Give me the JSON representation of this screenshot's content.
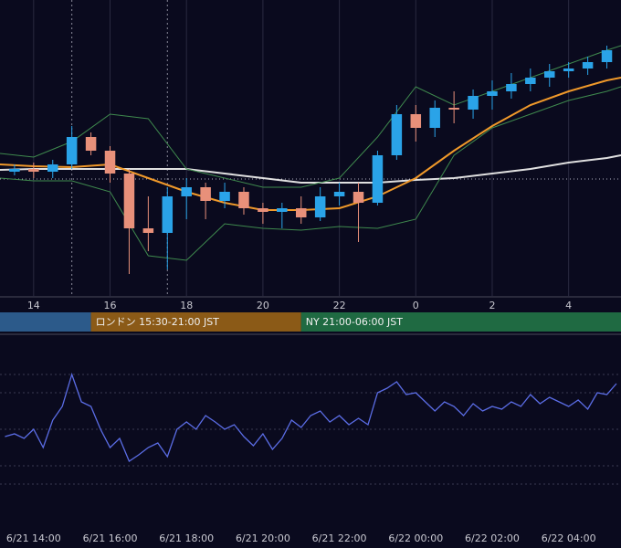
{
  "chart_data": [
    {
      "type": "candlestick",
      "xlim": [
        13.12,
        29.37
      ],
      "ylim": [
        0,
        325
      ],
      "grid": true,
      "xticks": [
        14,
        16,
        18,
        20,
        22,
        {
          "value": 24,
          "label": "0"
        },
        {
          "value": 26,
          "label": "2"
        },
        {
          "value": 28,
          "label": "4"
        }
      ],
      "up_color": "#2aa3e8",
      "down_color": "#e8907a",
      "x": [
        13.5,
        14,
        14.5,
        15,
        15.5,
        16,
        16.5,
        17,
        17.5,
        18,
        18.5,
        19,
        19.5,
        20,
        20.5,
        21,
        21.5,
        22,
        22.5,
        23,
        23.5,
        24,
        24.5,
        25,
        25.5,
        26,
        26.5,
        27,
        27.5,
        28,
        28.5,
        29
      ],
      "open": [
        137,
        140,
        137,
        145,
        175,
        160,
        135,
        75,
        70,
        110,
        120,
        105,
        115,
        97,
        93,
        97,
        87,
        110,
        115,
        103,
        155,
        200,
        185,
        207,
        205,
        220,
        225,
        233,
        240,
        247,
        250,
        257
      ],
      "high": [
        145,
        147,
        150,
        187,
        180,
        165,
        140,
        110,
        120,
        130,
        125,
        125,
        120,
        103,
        103,
        110,
        120,
        125,
        125,
        160,
        210,
        210,
        215,
        225,
        227,
        237,
        245,
        250,
        255,
        257,
        263,
        275
      ],
      "low": [
        133,
        130,
        130,
        140,
        155,
        125,
        25,
        50,
        30,
        85,
        85,
        97,
        90,
        80,
        75,
        80,
        83,
        100,
        60,
        100,
        150,
        170,
        175,
        190,
        195,
        205,
        217,
        225,
        230,
        240,
        243,
        250
      ],
      "close": [
        140,
        137,
        145,
        175,
        160,
        135,
        75,
        70,
        110,
        120,
        105,
        115,
        97,
        93,
        97,
        87,
        110,
        115,
        103,
        155,
        200,
        185,
        207,
        205,
        220,
        225,
        233,
        240,
        247,
        250,
        257,
        270
      ],
      "overlays": [
        {
          "color": "#e0e0e0",
          "x": [
            13.12,
            14,
            15,
            16,
            17,
            18,
            19,
            20,
            21,
            22,
            23,
            24,
            25,
            26,
            27,
            28,
            29,
            29.37
          ],
          "values": [
            139,
            140,
            140,
            140,
            140,
            140,
            135,
            130,
            125,
            125,
            125,
            128,
            130,
            135,
            140,
            147,
            152,
            155
          ]
        },
        {
          "color": "#f0992a",
          "x": [
            13.12,
            14,
            15,
            16,
            17,
            18,
            19,
            20,
            21,
            22,
            23,
            24,
            25,
            26,
            27,
            28,
            29,
            29.37
          ],
          "values": [
            145,
            143,
            142,
            145,
            130,
            115,
            103,
            95,
            95,
            97,
            110,
            130,
            160,
            187,
            210,
            225,
            237,
            240
          ]
        },
        {
          "color": "#3f8a4e",
          "x": [
            13.12,
            14,
            15,
            16,
            17,
            18,
            19,
            20,
            21,
            22,
            23,
            24,
            25,
            26,
            27,
            28,
            29,
            29.37
          ],
          "values": [
            157,
            153,
            170,
            200,
            195,
            140,
            130,
            120,
            120,
            130,
            175,
            230,
            210,
            225,
            240,
            255,
            270,
            275
          ]
        },
        {
          "color": "#3f8a4e",
          "x": [
            13.12,
            14,
            15,
            16,
            17,
            18,
            19,
            20,
            21,
            22,
            23,
            24,
            25,
            26,
            27,
            28,
            29,
            29.37
          ],
          "values": [
            130,
            127,
            127,
            115,
            45,
            40,
            80,
            75,
            73,
            77,
            75,
            85,
            155,
            185,
            200,
            215,
            225,
            230
          ]
        }
      ],
      "hline": 129,
      "vlines": [
        15,
        17.5
      ],
      "sessions": [
        {
          "start": 9,
          "end": 15.5,
          "color": "#2c5a8a"
        },
        {
          "label": "ロンドン 15:30-21:00 JST",
          "start": 15.5,
          "end": 21,
          "color": "#8b5a17"
        },
        {
          "label": "NY 21:00-06:00 JST",
          "start": 21,
          "end": 30,
          "color": "#1f6a42"
        }
      ]
    },
    {
      "type": "line",
      "xlim": [
        13.12,
        29.37
      ],
      "ylim": [
        0,
        100
      ],
      "grid": true,
      "xticks": [
        {
          "value": 14,
          "label": "6/21 14:00"
        },
        {
          "value": 16,
          "label": "6/21 16:00"
        },
        {
          "value": 18,
          "label": "6/21 18:00"
        },
        {
          "value": 20,
          "label": "6/21 20:00"
        },
        {
          "value": 22,
          "label": "6/21 22:00"
        },
        {
          "value": 24,
          "label": "6/22 00:00"
        },
        {
          "value": 26,
          "label": "6/22 02:00"
        },
        {
          "value": 28,
          "label": "6/22 04:00"
        }
      ],
      "yticks": [
        80,
        70,
        50,
        30,
        20
      ],
      "color": "#5b6de6",
      "x": [
        13.25,
        13.5,
        13.75,
        14,
        14.25,
        14.5,
        14.75,
        15,
        15.25,
        15.5,
        15.75,
        16,
        16.25,
        16.5,
        16.75,
        17,
        17.25,
        17.5,
        17.75,
        18,
        18.25,
        18.5,
        18.75,
        19,
        19.25,
        19.5,
        19.75,
        20,
        20.25,
        20.5,
        20.75,
        21,
        21.25,
        21.5,
        21.75,
        22,
        22.25,
        22.5,
        22.75,
        23,
        23.25,
        23.5,
        23.75,
        24,
        24.25,
        24.5,
        24.75,
        25,
        25.25,
        25.5,
        25.75,
        26,
        26.25,
        26.5,
        26.75,
        27,
        27.25,
        27.5,
        27.75,
        28,
        28.25,
        28.5,
        28.75,
        29,
        29.25
      ],
      "values": [
        46,
        47.5,
        45,
        50,
        40,
        55,
        62.5,
        80,
        65,
        62.5,
        50,
        40,
        45,
        32.5,
        36,
        40,
        42.5,
        35,
        50,
        54,
        50,
        57.5,
        54,
        50,
        52.5,
        46,
        41,
        47.5,
        39,
        45,
        55,
        51,
        57.5,
        60,
        54,
        57.5,
        52.5,
        56,
        52.5,
        70,
        72.5,
        76,
        69,
        70,
        65,
        60,
        65,
        62.5,
        57.5,
        64,
        60,
        62.5,
        61,
        65,
        62.5,
        69,
        64,
        67.5,
        65,
        62.5,
        66,
        61,
        70,
        69,
        75
      ]
    }
  ]
}
